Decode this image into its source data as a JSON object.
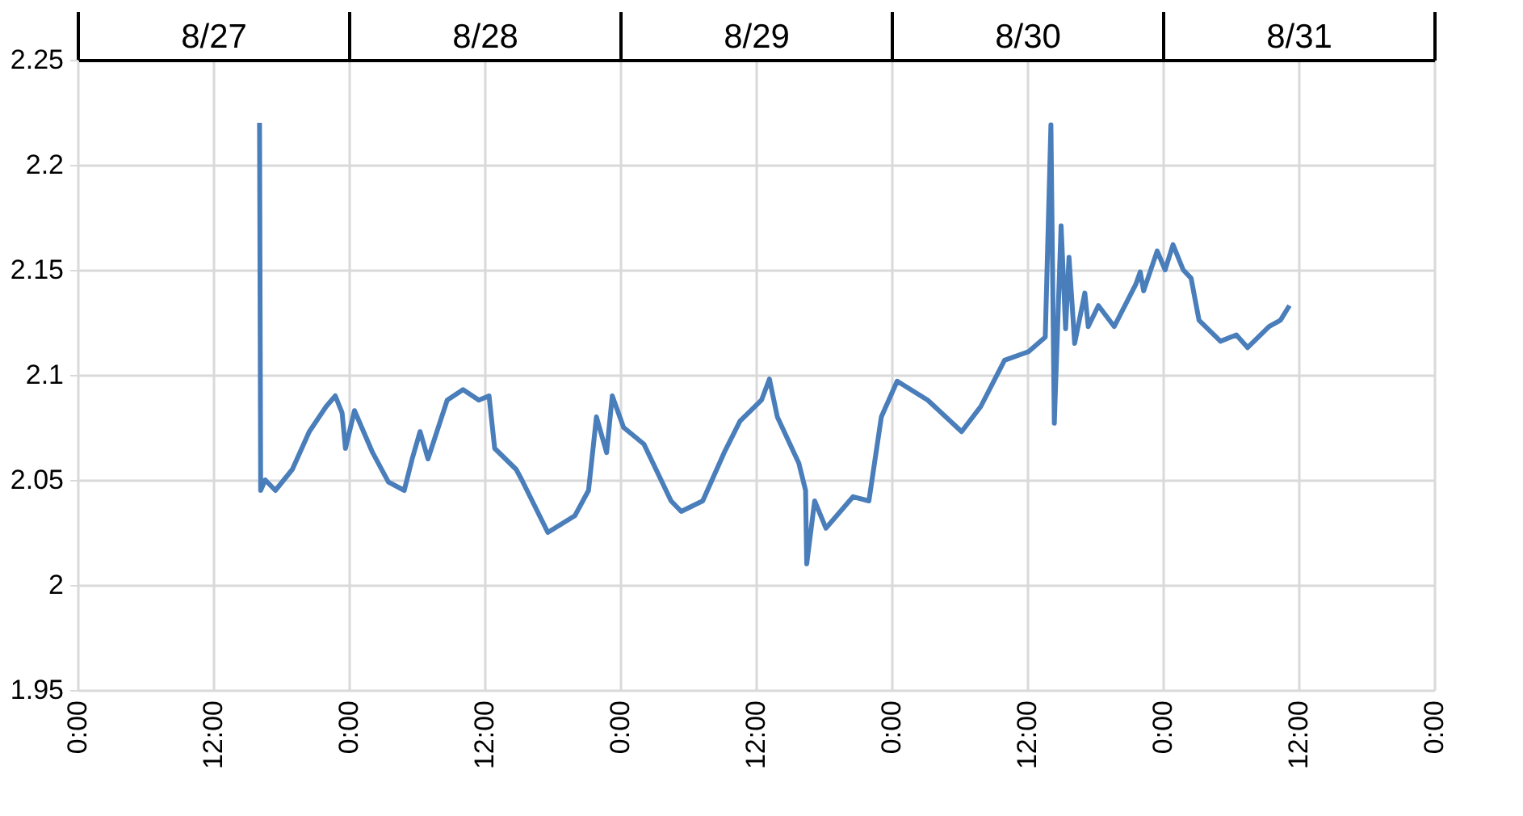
{
  "chart_data": {
    "type": "line",
    "x": [
      "--08-27T16:06",
      "--08-27T16:12",
      "--08-27T16:36",
      "--08-27T17:30",
      "--08-27T19:00",
      "--08-27T20:30",
      "--08-27T22:00",
      "--08-27T22:48",
      "--08-27T23:24",
      "--08-27T23:42",
      "--08-28T00:30",
      "--08-28T02:06",
      "--08-28T03:30",
      "--08-28T04:54",
      "--08-28T05:36",
      "--08-28T06:18",
      "--08-28T07:00",
      "--08-28T08:42",
      "--08-28T10:06",
      "--08-28T11:30",
      "--08-28T12:24",
      "--08-28T12:54",
      "--08-28T14:48",
      "--08-28T15:18",
      "--08-28T17:36",
      "--08-28T20:00",
      "--08-28T21:12",
      "--08-28T21:54",
      "--08-28T22:48",
      "--08-28T23:18",
      "--08-29T00:18",
      "--08-29T02:06",
      "--08-29T04:30",
      "--08-29T05:24",
      "--08-29T07:18",
      "--08-29T09:12",
      "--08-29T10:36",
      "--08-29T12:30",
      "--08-29T13:12",
      "--08-29T13:54",
      "--08-29T15:48",
      "--08-29T16:24",
      "--08-29T16:30",
      "--08-29T17:12",
      "--08-29T18:12",
      "--08-29T20:36",
      "--08-29T22:00",
      "--08-29T23:06",
      "--08-30T00:30",
      "--08-30T03:12",
      "--08-30T06:12",
      "--08-30T07:54",
      "--08-30T10:00",
      "--08-30T12:06",
      "--08-30T13:36",
      "--08-30T14:06",
      "--08-30T14:24",
      "--08-30T15:00",
      "--08-30T15:24",
      "--08-30T15:42",
      "--08-30T16:12",
      "--08-30T17:06",
      "--08-30T17:24",
      "--08-30T18:18",
      "--08-30T19:42",
      "--08-30T21:36",
      "--08-30T22:00",
      "--08-30T22:18",
      "--08-30T23:30",
      "--08-31T00:12",
      "--08-31T00:54",
      "--08-31T01:48",
      "--08-31T02:30",
      "--08-31T03:12",
      "--08-31T05:06",
      "--08-31T06:30",
      "--08-31T07:30",
      "--08-31T09:24",
      "--08-31T10:24",
      "--08-31T11:12"
    ],
    "values": [
      2.22,
      2.045,
      2.05,
      2.045,
      2.055,
      2.073,
      2.085,
      2.09,
      2.082,
      2.065,
      2.083,
      2.063,
      2.049,
      2.045,
      2.06,
      2.073,
      2.06,
      2.088,
      2.093,
      2.088,
      2.09,
      2.065,
      2.055,
      2.05,
      2.025,
      2.033,
      2.045,
      2.08,
      2.063,
      2.09,
      2.075,
      2.067,
      2.04,
      2.035,
      2.04,
      2.063,
      2.078,
      2.088,
      2.098,
      2.08,
      2.058,
      2.045,
      2.01,
      2.04,
      2.027,
      2.042,
      2.04,
      2.08,
      2.097,
      2.088,
      2.073,
      2.085,
      2.107,
      2.111,
      2.118,
      2.219,
      2.077,
      2.171,
      2.122,
      2.156,
      2.115,
      2.139,
      2.123,
      2.133,
      2.123,
      2.143,
      2.149,
      2.14,
      2.159,
      2.15,
      2.162,
      2.15,
      2.146,
      2.126,
      2.116,
      2.119,
      2.113,
      2.123,
      2.126,
      2.133
    ],
    "color": "#4a7ebb",
    "xlim": [
      "--08-27T00:00",
      "--09-01T00:00"
    ],
    "xticks": [
      {
        "value": "--08-27T00:00",
        "label": "0:00"
      },
      {
        "value": "--08-27T12:00",
        "label": "12:00"
      },
      {
        "value": "--08-28T00:00",
        "label": "0:00"
      },
      {
        "value": "--08-28T12:00",
        "label": "12:00"
      },
      {
        "value": "--08-29T00:00",
        "label": "0:00"
      },
      {
        "value": "--08-29T12:00",
        "label": "12:00"
      },
      {
        "value": "--08-30T00:00",
        "label": "0:00"
      },
      {
        "value": "--08-30T12:00",
        "label": "12:00"
      },
      {
        "value": "--08-31T00:00",
        "label": "0:00"
      },
      {
        "value": "--08-31T12:00",
        "label": "12:00"
      },
      {
        "value": "--09-01T00:00",
        "label": "0:00"
      }
    ],
    "x2lim": [
      "--08-27T00:00",
      "--09-01T00:00"
    ],
    "x2ticks": [
      {
        "value": "--08-27T00:00",
        "label": null
      },
      {
        "value": "--08-27T12:00",
        "label": "8/27"
      },
      {
        "value": "--08-28T00:00",
        "label": null
      },
      {
        "value": "--08-28T12:00",
        "label": "8/28"
      },
      {
        "value": "--08-29T00:00",
        "label": null
      },
      {
        "value": "--08-29T12:00",
        "label": "8/29"
      },
      {
        "value": "--08-30T00:00",
        "label": null
      },
      {
        "value": "--08-30T12:00",
        "label": "8/30"
      },
      {
        "value": "--08-31T00:00",
        "label": null
      },
      {
        "value": "--08-31T12:00",
        "label": "8/31"
      },
      {
        "value": "--09-01T00:00",
        "label": null
      }
    ],
    "ylim": [
      1.95,
      2.25
    ],
    "yticks": [
      1.95,
      2,
      2.05,
      2.1,
      2.15,
      2.2,
      2.25
    ],
    "grid": true,
    "line_style": "solid",
    "marker": "none"
  }
}
